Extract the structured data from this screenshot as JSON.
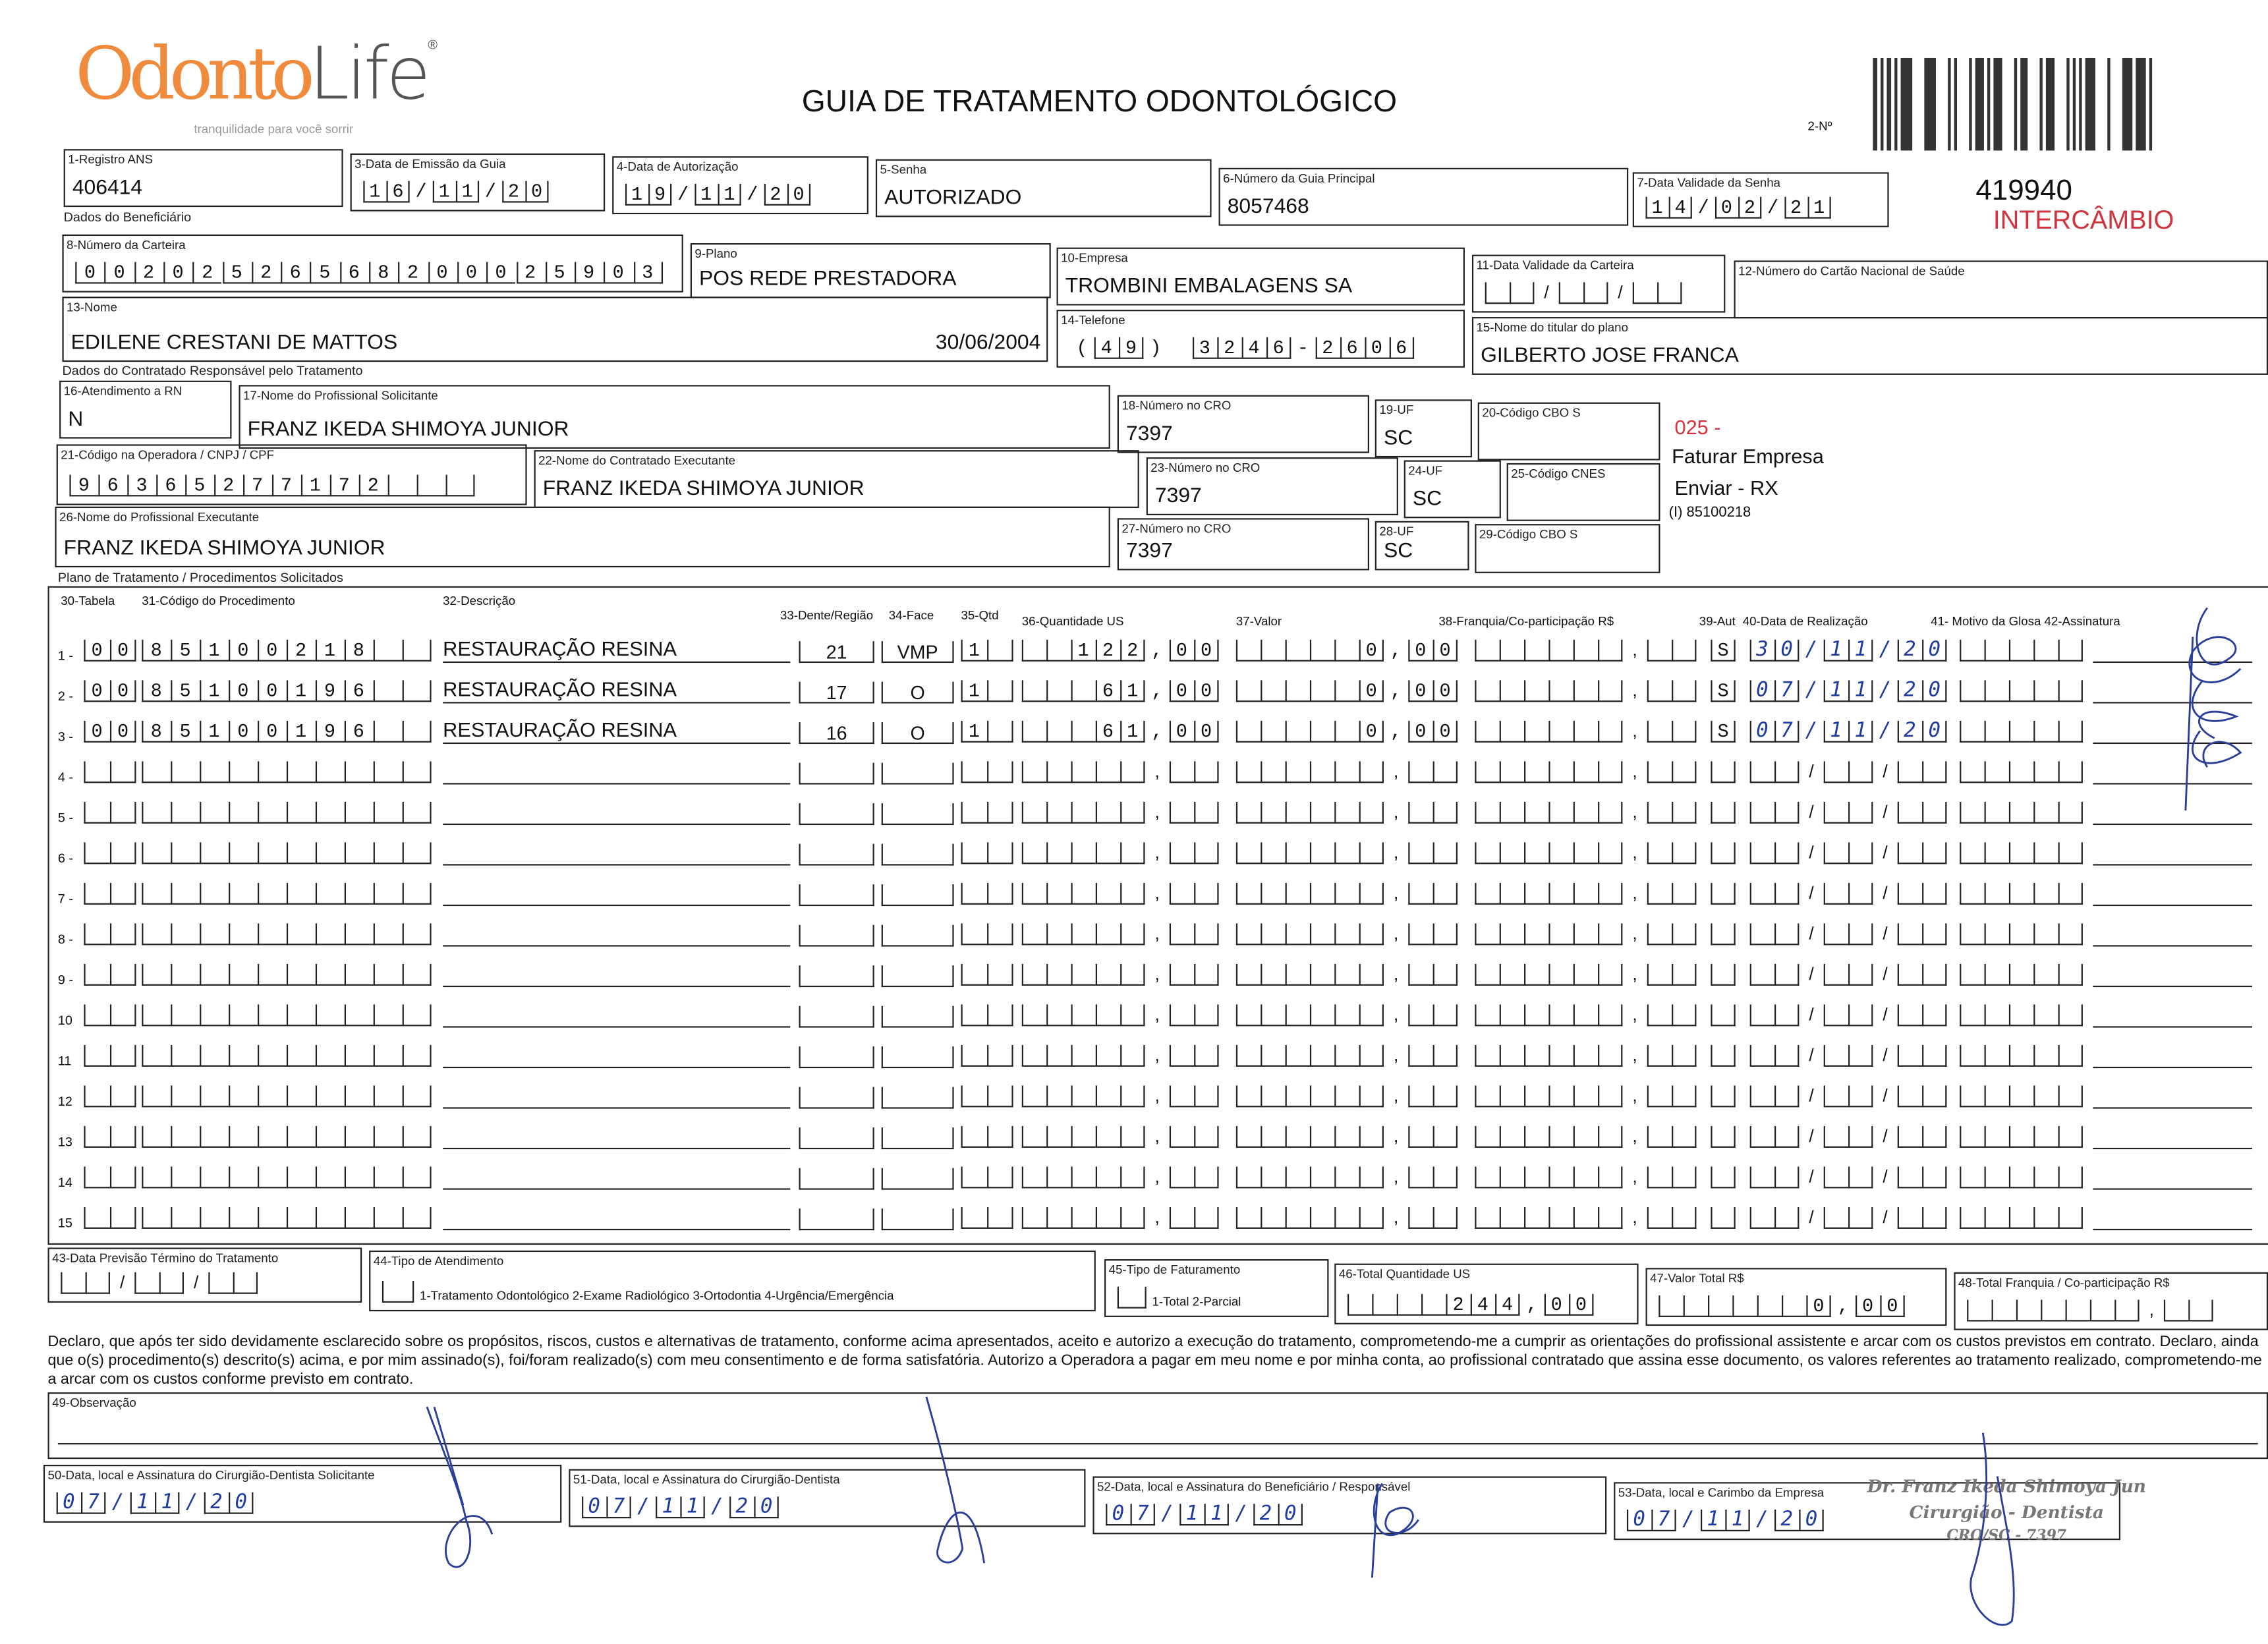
{
  "header": {
    "brand_part1": "Odonto",
    "brand_part2": "Life",
    "brand_mark": "®",
    "tagline": "tranquilidade para você sorrir",
    "title": "GUIA DE TRATAMENTO ODONTOLÓGICO",
    "guide_number_label": "2-Nº",
    "guide_number": "419940",
    "stamp": "INTERCÂMBIO"
  },
  "colors": {
    "brand_orange": "#f08a3c",
    "brand_gray": "#555555",
    "stamp_red": "#d0343f",
    "ink_blue": "#1f3c9e"
  },
  "sections": {
    "beneficiario": "Dados do Beneficiário",
    "contratado": "Dados do Contratado Responsável pelo Tratamento",
    "plano": "Plano de Tratamento / Procedimentos Solicitados"
  },
  "fields": {
    "f1": {
      "label": "1-Registro ANS",
      "value": "406414"
    },
    "f3": {
      "label": "3-Data de Emissão da Guia",
      "value": "16/11/20"
    },
    "f4": {
      "label": "4-Data de Autorização",
      "value": "19/11/20"
    },
    "f5": {
      "label": "5-Senha",
      "value": "AUTORIZADO"
    },
    "f6": {
      "label": "6-Número da Guia Principal",
      "value": "8057468"
    },
    "f7": {
      "label": "7-Data Validade da Senha",
      "value": "14/02/21"
    },
    "f8": {
      "label": "8-Número da Carteira",
      "value": "00202526568200025903"
    },
    "f9": {
      "label": "9-Plano",
      "value": "POS REDE PRESTADORA"
    },
    "f10": {
      "label": "10-Empresa",
      "value": "TROMBINI EMBALAGENS SA"
    },
    "f11": {
      "label": "11-Data Validade da Carteira",
      "value": ""
    },
    "f12": {
      "label": "12-Número do Cartão Nacional de Saúde",
      "value": ""
    },
    "f13": {
      "label": "13-Nome",
      "value": "EDILENE CRESTANI DE MATTOS",
      "extra": "30/06/2004"
    },
    "f14": {
      "label": "14-Telefone",
      "value": "(49) 3246-2606"
    },
    "f15": {
      "label": "15-Nome do titular do plano",
      "value": "GILBERTO JOSE FRANCA"
    },
    "f16": {
      "label": "16-Atendimento a RN",
      "value": "N"
    },
    "f17": {
      "label": "17-Nome do Profissional Solicitante",
      "value": "FRANZ IKEDA SHIMOYA JUNIOR"
    },
    "f18": {
      "label": "18-Número no CRO",
      "value": "7397"
    },
    "f19": {
      "label": "19-UF",
      "value": "SC"
    },
    "f20": {
      "label": "20-Código CBO S",
      "value": ""
    },
    "f21": {
      "label": "21-Código na Operadora / CNPJ / CPF",
      "value": "96365277172"
    },
    "f22": {
      "label": "22-Nome do Contratado Executante",
      "value": "FRANZ IKEDA SHIMOYA JUNIOR"
    },
    "f23": {
      "label": "23-Número no CRO",
      "value": "7397"
    },
    "f24": {
      "label": "24-UF",
      "value": "SC"
    },
    "f25": {
      "label": "25-Código CNES",
      "value": ""
    },
    "f26": {
      "label": "26-Nome do Profissional Executante",
      "value": "FRANZ IKEDA SHIMOYA JUNIOR"
    },
    "f27": {
      "label": "27-Número no CRO",
      "value": "7397"
    },
    "f28": {
      "label": "28-UF",
      "value": "SC"
    },
    "f29": {
      "label": "29-Código CBO S",
      "value": ""
    },
    "f43": {
      "label": "43-Data Previsão Término do Tratamento",
      "value": ""
    },
    "f44": {
      "label": "44-Tipo de Atendimento",
      "value": "",
      "options": "1-Tratamento Odontológico  2-Exame Radiológico  3-Ortodontia  4-Urgência/Emergência"
    },
    "f45": {
      "label": "45-Tipo de Faturamento",
      "value": "",
      "options": "1-Total  2-Parcial"
    },
    "f46": {
      "label": "46-Total Quantidade US",
      "value": "244,00"
    },
    "f47": {
      "label": "47-Valor Total R$",
      "value": "0,00"
    },
    "f48": {
      "label": "48-Total Franquia / Co-participação R$",
      "value": ""
    },
    "f49": {
      "label": "49-Observação",
      "value": ""
    },
    "f50": {
      "label": "50-Data, local e Assinatura do Cirurgião-Dentista Solicitante",
      "value": "07/11/20"
    },
    "f51": {
      "label": "51-Data, local e Assinatura do Cirurgião-Dentista",
      "value": "07/11/20"
    },
    "f52": {
      "label": "52-Data, local e Assinatura do Beneficiário / Responsável",
      "value": "07/11/20"
    },
    "f53": {
      "label": "53-Data, local e Carimbo da Empresa",
      "value": "07/11/20"
    }
  },
  "side_notes": {
    "code": "025 -",
    "line1": "Faturar Empresa",
    "line2": "Enviar - RX",
    "line3": "(I) 85100218"
  },
  "table": {
    "headers": {
      "tabela": "30-Tabela",
      "codigo": "31-Código do Procedimento",
      "descricao": "32-Descrição",
      "dente": "33-Dente/Região",
      "face": "34-Face",
      "qtd": "35-Qtd",
      "quant_us": "36-Quantidade US",
      "valor": "37-Valor",
      "franquia": "38-Franquia/Co-participação R$",
      "aut": "39-Aut",
      "data": "40-Data de Realização",
      "motivo": "41- Motivo da Glosa  42-Assinatura"
    },
    "rows": [
      {
        "n": "1 -",
        "tabela": "00",
        "codigo": "85100218",
        "descricao": "RESTAURAÇÃO RESINA",
        "dente": "21",
        "face": "VMP",
        "qtd": "1",
        "quant_us": "122,00",
        "valor": "0,00",
        "franquia": "",
        "aut": "S",
        "data": "30/11/20",
        "motivo": ""
      },
      {
        "n": "2 -",
        "tabela": "00",
        "codigo": "85100196",
        "descricao": "RESTAURAÇÃO RESINA",
        "dente": "17",
        "face": "O",
        "qtd": "1",
        "quant_us": "61,00",
        "valor": "0,00",
        "franquia": "",
        "aut": "S",
        "data": "07/11/20",
        "motivo": ""
      },
      {
        "n": "3 -",
        "tabela": "00",
        "codigo": "85100196",
        "descricao": "RESTAURAÇÃO RESINA",
        "dente": "16",
        "face": "O",
        "qtd": "1",
        "quant_us": "61,00",
        "valor": "0,00",
        "franquia": "",
        "aut": "S",
        "data": "07/11/20",
        "motivo": ""
      },
      {
        "n": "4 -"
      },
      {
        "n": "5 -"
      },
      {
        "n": "6 -"
      },
      {
        "n": "7 -"
      },
      {
        "n": "8 -"
      },
      {
        "n": "9 -"
      },
      {
        "n": "10"
      },
      {
        "n": "11"
      },
      {
        "n": "12"
      },
      {
        "n": "13"
      },
      {
        "n": "14"
      },
      {
        "n": "15"
      }
    ]
  },
  "declaration": "Declaro, que após ter sido devidamente esclarecido sobre os propósitos, riscos, custos e alternativas de tratamento, conforme acima apresentados, aceito e autorizo a execução do tratamento, comprometendo-me a cumprir as orientações do profissional assistente e arcar com os custos previstos em contrato. Declaro, ainda que o(s) procedimento(s) descrito(s) acima, e por mim assinado(s), foi/foram realizado(s) com meu consentimento e de forma satisfatória. Autorizo a Operadora a pagar em meu nome e por minha conta, ao profissional contratado que assina esse documento, os valores referentes ao tratamento realizado, comprometendo-me a arcar com os custos conforme previsto em contrato.",
  "company_stamp": {
    "line1": "Dr. Franz Ikeda Shimoya Jun",
    "line2": "Cirurgião - Dentista",
    "line3": "CRO/SC - 7397"
  }
}
